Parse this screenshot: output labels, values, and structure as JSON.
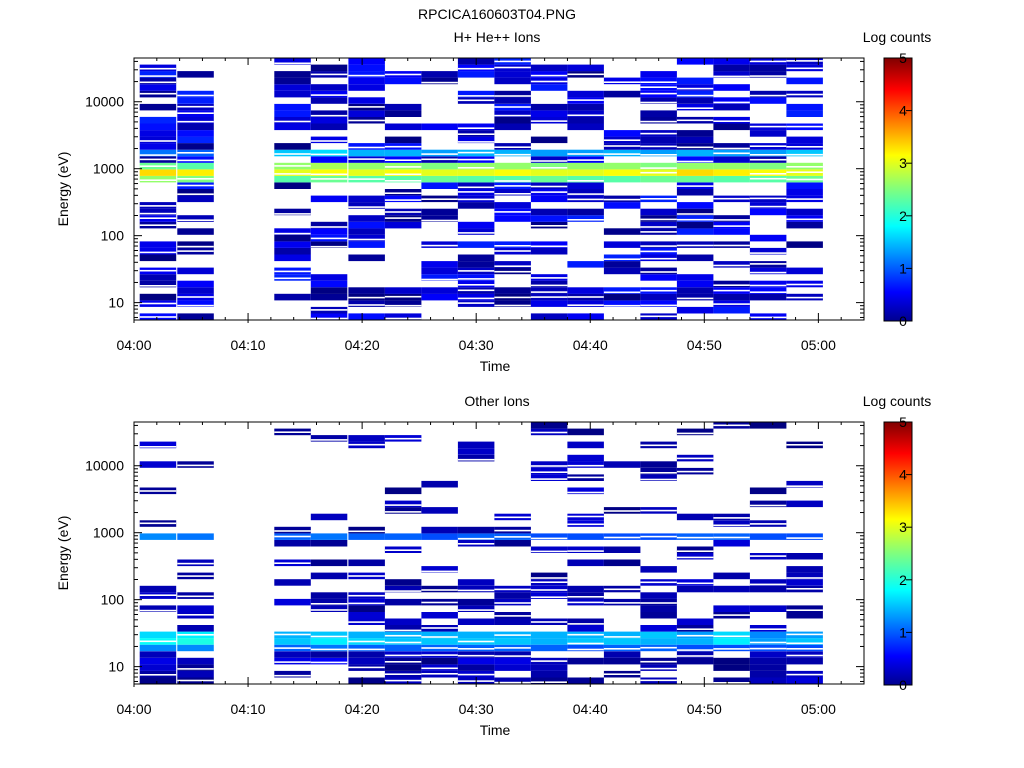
{
  "figure_title": "RPCICA160603T04.PNG",
  "colorbar": {
    "label": "Log counts",
    "ticks": [
      "0",
      "1",
      "2",
      "3",
      "4",
      "5"
    ],
    "range": [
      0,
      5
    ],
    "colormap": "jet"
  },
  "chart_data": [
    {
      "type": "heatmap",
      "title": "H+ He++ Ions",
      "xlabel": "Time",
      "ylabel": "Energy (eV)",
      "x_ticks": [
        "04:00",
        "04:10",
        "04:20",
        "04:30",
        "04:40",
        "04:50",
        "05:00"
      ],
      "xlim_minutes": [
        0,
        64
      ],
      "y_ticks": [
        "10",
        "100",
        "1000",
        "10000"
      ],
      "y_scale": "log",
      "ylim": [
        5.5,
        45000
      ],
      "time_columns": [
        "04:02.5",
        "04:05.7",
        "04:12.5",
        "04:15.7",
        "04:19.0",
        "04:22.2",
        "04:25.4",
        "04:28.6",
        "04:31.8",
        "04:35.0",
        "04:38.2",
        "04:41.4",
        "04:44.6",
        "04:47.8",
        "04:51.0",
        "04:54.2",
        "04:57.4"
      ],
      "bands": [
        {
          "energy_eV": 880,
          "log_counts": [
            3.3,
            3.2,
            3.0,
            3.1,
            3.0,
            3.1,
            3.0,
            3.0,
            3.1,
            3.0,
            3.0,
            3.1,
            3.0,
            3.3,
            3.2,
            3.1,
            3.0
          ]
        },
        {
          "energy_eV": 1050,
          "log_counts": [
            2.4,
            2.3,
            2.6,
            2.7,
            2.6,
            2.6,
            2.5,
            2.6,
            2.6,
            2.5,
            2.6,
            2.6,
            2.5,
            2.6,
            2.6,
            2.5,
            2.6
          ]
        },
        {
          "energy_eV": 750,
          "log_counts": [
            2.6,
            2.5,
            2.3,
            2.4,
            2.3,
            2.3,
            2.4,
            2.3,
            2.3,
            2.4,
            2.3,
            2.3,
            2.4,
            2.4,
            2.3,
            2.3,
            2.4
          ]
        },
        {
          "energy_eV": 1750,
          "log_counts": [
            1.2,
            1.1,
            1.6,
            1.7,
            1.5,
            1.5,
            1.4,
            1.5,
            1.5,
            1.4,
            1.4,
            1.5,
            1.4,
            1.5,
            1.4,
            1.4,
            1.6
          ]
        },
        {
          "energy_eV": 12,
          "log_counts": [
            0.0,
            0.5,
            0.2,
            0.1,
            0.0,
            0.0,
            0.6,
            0.5,
            0.0,
            0.3,
            0.2,
            0.0,
            0.3,
            0.2,
            0.2,
            0.2,
            0.3
          ]
        }
      ]
    },
    {
      "type": "heatmap",
      "title": "Other Ions",
      "xlabel": "Time",
      "ylabel": "Energy (eV)",
      "x_ticks": [
        "04:00",
        "04:10",
        "04:20",
        "04:30",
        "04:40",
        "04:50",
        "05:00"
      ],
      "xlim_minutes": [
        0,
        64
      ],
      "y_ticks": [
        "10",
        "100",
        "1000",
        "10000"
      ],
      "y_scale": "log",
      "ylim": [
        5.5,
        45000
      ],
      "time_columns": [
        "04:02.5",
        "04:05.7",
        "04:12.5",
        "04:15.7",
        "04:19.0",
        "04:22.2",
        "04:25.4",
        "04:28.6",
        "04:31.8",
        "04:35.0",
        "04:38.2",
        "04:41.4",
        "04:44.6",
        "04:47.8",
        "04:51.0",
        "04:54.2",
        "04:57.4"
      ],
      "bands": [
        {
          "energy_eV": 24,
          "log_counts": [
            1.9,
            2.0,
            1.6,
            1.8,
            1.7,
            1.6,
            1.6,
            1.6,
            1.6,
            1.5,
            1.6,
            1.6,
            1.5,
            1.5,
            1.8,
            1.4,
            1.6
          ]
        },
        {
          "energy_eV": 30,
          "log_counts": [
            1.7,
            1.8,
            1.5,
            1.6,
            1.5,
            1.5,
            1.5,
            1.5,
            1.5,
            1.5,
            1.5,
            1.5,
            1.6,
            1.4,
            1.7,
            1.3,
            1.4
          ]
        },
        {
          "energy_eV": 18,
          "log_counts": [
            1.3,
            1.3,
            1.1,
            1.2,
            1.1,
            1.1,
            1.1,
            1.1,
            1.1,
            1.1,
            1.0,
            1.1,
            1.1,
            1.0,
            1.0,
            1.0,
            1.0
          ]
        },
        {
          "energy_eV": 880,
          "log_counts": [
            1.3,
            1.2,
            1.1,
            1.2,
            1.1,
            1.1,
            1.0,
            1.1,
            1.1,
            1.0,
            1.0,
            1.0,
            1.0,
            1.1,
            1.1,
            1.0,
            1.0
          ]
        },
        {
          "energy_eV": 12,
          "log_counts": [
            0.5,
            0.3,
            0.5,
            0.6,
            0.3,
            0.1,
            0.0,
            0.5,
            0.5,
            0.3,
            0.1,
            0.1,
            0.1,
            0.1,
            0.0,
            0.2,
            0.2
          ]
        }
      ]
    }
  ]
}
